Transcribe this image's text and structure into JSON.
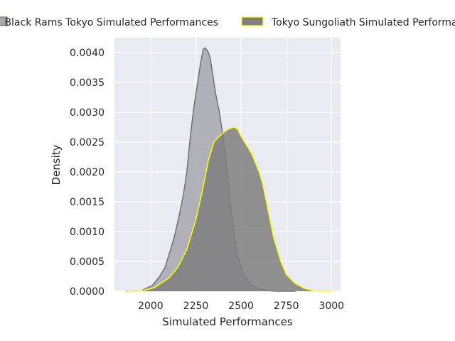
{
  "chart_data": {
    "type": "area",
    "title": "",
    "xlabel": "Simulated Performances",
    "ylabel": "Density",
    "xlim": [
      1800,
      3050
    ],
    "ylim": [
      0,
      0.00425
    ],
    "xticks": [
      2000,
      2250,
      2500,
      2750,
      3000
    ],
    "xtick_labels": [
      "2000",
      "2250",
      "2500",
      "2750",
      "3000"
    ],
    "yticks": [
      0,
      0.0005,
      0.001,
      0.0015,
      0.002,
      0.0025,
      0.003,
      0.0035,
      0.004
    ],
    "ytick_labels": [
      "0.0000",
      "0.0005",
      "0.0010",
      "0.0015",
      "0.0020",
      "0.0025",
      "0.0030",
      "0.0035",
      "0.0040"
    ],
    "grid": true,
    "legend_position": "top (above plot)",
    "series": [
      {
        "name": "Black Rams Tokyo Simulated Performances",
        "fill": "#a6a6ae",
        "stroke": "#707070",
        "x": [
          1860,
          1950,
          2010,
          2050,
          2080,
          2100,
          2130,
          2160,
          2180,
          2200,
          2220,
          2240,
          2260,
          2275,
          2290,
          2300,
          2310,
          2320,
          2330,
          2345,
          2360,
          2380,
          2400,
          2420,
          2440,
          2460,
          2480,
          2500,
          2520,
          2550,
          2600,
          2650,
          2700,
          2750,
          2800
        ],
        "values": [
          0.0,
          1e-05,
          0.0001,
          0.00025,
          0.0004,
          0.0006,
          0.0009,
          0.0013,
          0.0016,
          0.002,
          0.0026,
          0.0031,
          0.0035,
          0.0038,
          0.00405,
          0.00408,
          0.00405,
          0.004,
          0.0039,
          0.0036,
          0.0033,
          0.003,
          0.0026,
          0.0021,
          0.0015,
          0.001,
          0.0006,
          0.0004,
          0.00025,
          0.00012,
          4e-05,
          1e-05,
          0.0,
          0.0,
          0.0
        ]
      },
      {
        "name": "Tokyo Sungoliath Simulated Performances",
        "fill": "#7f7f7f",
        "stroke": "#ffff00",
        "x": [
          1860,
          1950,
          2020,
          2050,
          2100,
          2150,
          2200,
          2250,
          2280,
          2300,
          2320,
          2350,
          2380,
          2400,
          2420,
          2440,
          2460,
          2480,
          2500,
          2520,
          2540,
          2560,
          2580,
          2600,
          2620,
          2640,
          2660,
          2680,
          2700,
          2720,
          2750,
          2800,
          2850,
          2900,
          2950,
          3000
        ],
        "values": [
          0.0,
          1e-05,
          6e-05,
          0.00012,
          0.00022,
          0.0004,
          0.0007,
          0.0012,
          0.0016,
          0.0019,
          0.0022,
          0.0025,
          0.0026,
          0.00265,
          0.0027,
          0.00273,
          0.00275,
          0.00272,
          0.0026,
          0.0025,
          0.0024,
          0.0023,
          0.00215,
          0.002,
          0.0018,
          0.0015,
          0.0012,
          0.0009,
          0.0007,
          0.0005,
          0.00028,
          0.00013,
          5e-05,
          1e-05,
          0.0,
          0.0
        ]
      }
    ]
  },
  "legend": {
    "items": [
      {
        "label": "Black Rams Tokyo Simulated Performances"
      },
      {
        "label": "Tokyo Sungoliath Simulated Performances"
      }
    ]
  },
  "colors": {
    "axes_bg": "#eaeaf2",
    "grid": "#ffffff"
  }
}
